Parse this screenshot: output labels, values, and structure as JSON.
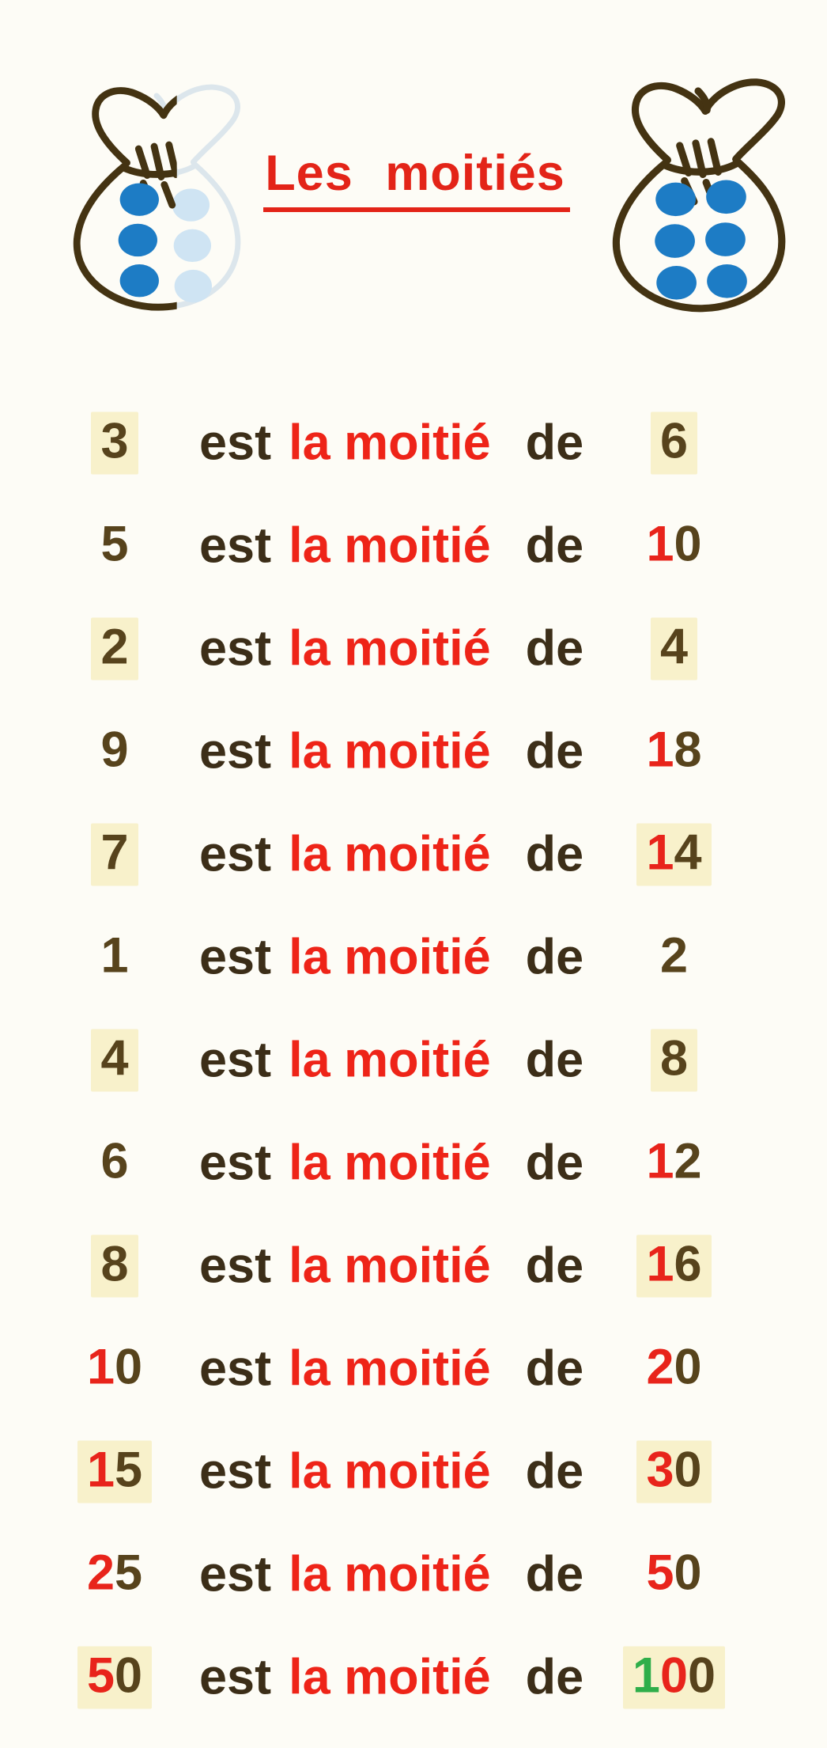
{
  "title": "Les moitiés",
  "phrase": {
    "est": "est",
    "middle": "la moitié",
    "de": "de"
  },
  "rows": [
    {
      "left": "3",
      "right": "6",
      "highlight": true
    },
    {
      "left": "5",
      "right": "10",
      "highlight": false
    },
    {
      "left": "2",
      "right": "4",
      "highlight": true
    },
    {
      "left": "9",
      "right": "18",
      "highlight": false
    },
    {
      "left": "7",
      "right": "14",
      "highlight": true
    },
    {
      "left": "1",
      "right": "2",
      "highlight": false
    },
    {
      "left": "4",
      "right": "8",
      "highlight": true
    },
    {
      "left": "6",
      "right": "12",
      "highlight": false
    },
    {
      "left": "8",
      "right": "16",
      "highlight": true
    },
    {
      "left": "10",
      "right": "20",
      "highlight": false
    },
    {
      "left": "15",
      "right": "30",
      "highlight": true
    },
    {
      "left": "25",
      "right": "50",
      "highlight": false
    },
    {
      "left": "50",
      "right": "100",
      "highlight": true
    }
  ],
  "colors": {
    "page_bg": "#fdfcf6",
    "title_red": "#e32418",
    "phrase_red": "#ee2418",
    "word_dark": "#3c2e18",
    "digit_units": "#57431c",
    "digit_tens": "#e8241b",
    "digit_hundreds": "#2fae4a",
    "highlight_bg": "#f8f1cb",
    "dot_blue": "#1d7cc5",
    "dot_faded": "#cfe4f3",
    "outline_dark": "#443312",
    "outline_faded": "#dce6ec"
  },
  "illustration": {
    "left_bag": {
      "name": "half-faded money bag",
      "solid_dots": 3,
      "faded_dots": 3
    },
    "right_bag": {
      "name": "full money bag",
      "solid_dots": 6
    }
  }
}
